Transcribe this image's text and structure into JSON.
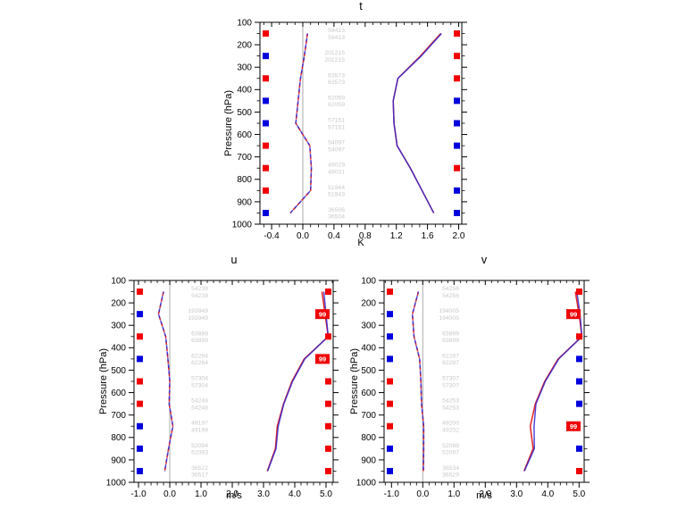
{
  "colors": {
    "line_red": "#e32020",
    "line_blue": "#3326cf",
    "marker_red": "#f00000",
    "marker_blue": "#0000dd",
    "sig_box_fill": "#f00000",
    "sig_box_text": "#ffffff",
    "counts_text": "#c9c9c9",
    "zero_line": "#aaaaaa",
    "axis": "#000000"
  },
  "sig_box_label": "99",
  "chart_data": [
    {
      "id": "t",
      "type": "line",
      "title": "t",
      "xlabel": "K",
      "ylabel": "Pressure (hPa)",
      "ylim": [
        100,
        1000
      ],
      "yticks": [
        100,
        200,
        300,
        400,
        500,
        600,
        700,
        800,
        900,
        1000
      ],
      "y_minor_step": 50,
      "xlim": [
        -0.55,
        2.04
      ],
      "xticks": [
        -0.4,
        0.0,
        0.4,
        0.8,
        1.2,
        1.6,
        2.0
      ],
      "x_minor_step": 0.1,
      "zero_line": true,
      "levels": [
        150,
        250,
        350,
        450,
        550,
        650,
        750,
        850,
        950
      ],
      "counts": [
        [
          "59413",
          "59413"
        ],
        [
          "201215",
          "201215"
        ],
        [
          "63573",
          "63573"
        ],
        [
          "62059",
          "62059"
        ],
        [
          "57151",
          "57151"
        ],
        [
          "54097",
          "54097"
        ],
        [
          "49029",
          "49031"
        ],
        [
          "51944",
          "51943"
        ],
        [
          "36506",
          "36504"
        ]
      ],
      "left_markers": [
        "red",
        "blue",
        "red",
        "blue",
        "blue",
        "red",
        "red",
        "red",
        "blue"
      ],
      "right_markers": [
        "red",
        "red",
        "red",
        "blue",
        "blue",
        "blue",
        "red",
        "blue",
        "blue"
      ],
      "series": [
        {
          "name": "solid-red",
          "style": "solid",
          "color": "red",
          "values": [
            1.77,
            1.51,
            1.22,
            1.16,
            1.17,
            1.21,
            1.38,
            1.53,
            1.68
          ]
        },
        {
          "name": "solid-blue",
          "style": "solid",
          "color": "blue",
          "values": [
            1.78,
            1.52,
            1.22,
            1.16,
            1.17,
            1.21,
            1.38,
            1.53,
            1.68
          ]
        },
        {
          "name": "dashed-red",
          "style": "dashed",
          "color": "red",
          "values": [
            0.06,
            0.02,
            -0.03,
            -0.06,
            -0.09,
            0.09,
            0.11,
            0.1,
            -0.16
          ]
        },
        {
          "name": "dashed-blue",
          "style": "dashed",
          "color": "blue",
          "values": [
            0.06,
            0.02,
            -0.03,
            -0.06,
            -0.09,
            0.09,
            0.11,
            0.1,
            -0.16
          ]
        }
      ]
    },
    {
      "id": "u",
      "type": "line",
      "title": "u",
      "xlabel": "m/s",
      "ylabel": "Pressure (hPa)",
      "ylim": [
        100,
        1000
      ],
      "yticks": [
        100,
        200,
        300,
        400,
        500,
        600,
        700,
        800,
        900,
        1000
      ],
      "y_minor_step": 50,
      "xlim": [
        -1.145,
        5.229
      ],
      "xticks": [
        -1.0,
        0.0,
        1.0,
        2.0,
        3.0,
        4.0,
        5.0
      ],
      "x_minor_step": 0.2,
      "zero_line": true,
      "levels": [
        150,
        250,
        350,
        450,
        550,
        650,
        750,
        850,
        950
      ],
      "counts": [
        [
          "54238",
          "54238"
        ],
        [
          "193949",
          "193949"
        ],
        [
          "63889",
          "63889"
        ],
        [
          "62284",
          "62284"
        ],
        [
          "57304",
          "57304"
        ],
        [
          "54248",
          "54248"
        ],
        [
          "49197",
          "49199"
        ],
        [
          "52094",
          "52093"
        ],
        [
          "36522",
          "36517"
        ]
      ],
      "left_markers": [
        "red",
        "blue",
        "red",
        "blue",
        "red",
        "red",
        "blue",
        "blue",
        "blue"
      ],
      "right_markers": [
        "red",
        "99",
        "red",
        "99",
        "red",
        "red",
        "red",
        "red",
        "red"
      ],
      "series": [
        {
          "name": "solid-red",
          "style": "solid",
          "color": "red",
          "values": [
            4.87,
            4.97,
            5.07,
            4.3,
            3.91,
            3.64,
            3.44,
            3.38,
            3.12
          ]
        },
        {
          "name": "solid-blue",
          "style": "solid",
          "color": "blue",
          "values": [
            4.93,
            5.0,
            5.07,
            4.32,
            3.93,
            3.65,
            3.47,
            3.4,
            3.13
          ]
        },
        {
          "name": "dashed-red",
          "style": "dashed",
          "color": "red",
          "values": [
            -0.2,
            -0.36,
            -0.13,
            -0.06,
            0.0,
            -0.02,
            0.1,
            -0.04,
            -0.16
          ]
        },
        {
          "name": "dashed-blue",
          "style": "dashed",
          "color": "blue",
          "values": [
            -0.2,
            -0.36,
            -0.13,
            -0.06,
            0.0,
            -0.02,
            0.1,
            -0.04,
            -0.16
          ]
        }
      ]
    },
    {
      "id": "v",
      "type": "line",
      "title": "v",
      "xlabel": "m/s",
      "ylabel": "Pressure (hPa)",
      "ylim": [
        100,
        1000
      ],
      "yticks": [
        100,
        200,
        300,
        400,
        500,
        600,
        700,
        800,
        900,
        1000
      ],
      "y_minor_step": 50,
      "xlim": [
        -1.237,
        5.163
      ],
      "xticks": [
        -1.0,
        0.0,
        1.0,
        2.0,
        3.0,
        4.0,
        5.0
      ],
      "x_minor_step": 0.2,
      "zero_line": true,
      "levels": [
        150,
        250,
        350,
        450,
        550,
        650,
        750,
        850,
        950
      ],
      "counts": [
        [
          "54256",
          "54256"
        ],
        [
          "194005",
          "194005"
        ],
        [
          "63899",
          "63899"
        ],
        [
          "62287",
          "62287"
        ],
        [
          "57307",
          "57307"
        ],
        [
          "54253",
          "54253"
        ],
        [
          "49200",
          "49202"
        ],
        [
          "52098",
          "52097"
        ],
        [
          "36534",
          "36529"
        ]
      ],
      "left_markers": [
        "red",
        "blue",
        "blue",
        "blue",
        "red",
        "red",
        "red",
        "blue",
        "blue"
      ],
      "right_markers": [
        "red",
        "99",
        "red",
        "blue",
        "blue",
        "blue",
        "99",
        "blue",
        "red"
      ],
      "series": [
        {
          "name": "solid-red",
          "style": "solid",
          "color": "red",
          "values": [
            4.88,
            5.0,
            5.09,
            4.33,
            3.9,
            3.6,
            3.44,
            3.53,
            3.24
          ]
        },
        {
          "name": "solid-blue",
          "style": "solid",
          "color": "blue",
          "values": [
            4.93,
            5.03,
            5.09,
            4.35,
            3.92,
            3.62,
            3.56,
            3.57,
            3.25
          ]
        },
        {
          "name": "dashed-red",
          "style": "dashed",
          "color": "red",
          "values": [
            -0.14,
            -0.33,
            -0.28,
            -0.1,
            -0.06,
            -0.04,
            0.03,
            0.03,
            0.02
          ]
        },
        {
          "name": "dashed-blue",
          "style": "dashed",
          "color": "blue",
          "values": [
            -0.14,
            -0.33,
            -0.28,
            -0.1,
            -0.06,
            -0.04,
            0.03,
            0.03,
            0.02
          ]
        }
      ]
    }
  ]
}
